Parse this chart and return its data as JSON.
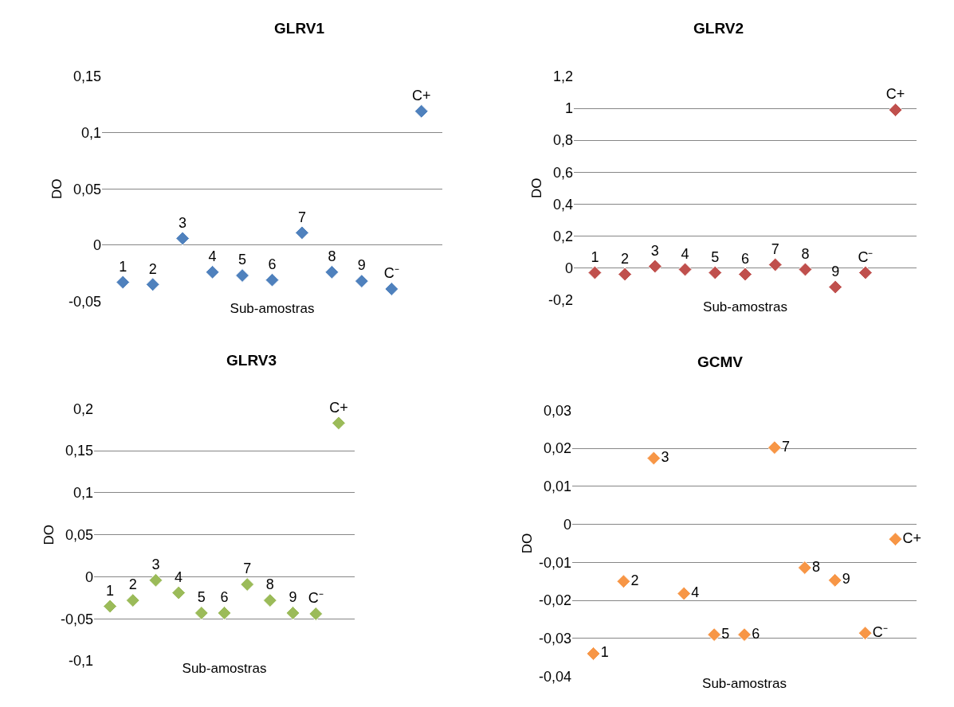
{
  "chart_data": [
    {
      "type": "scatter",
      "title": "GLRV1",
      "xlabel": "Sub-amostras",
      "ylabel": "DO",
      "categories": [
        null,
        null,
        null,
        null,
        null,
        null,
        null,
        null,
        null,
        null,
        null
      ],
      "marker": "diamond",
      "grid": "y",
      "ylim": [
        -0.05,
        0.15
      ],
      "yticks": [
        {
          "value": -0.05,
          "label": "-0,05"
        },
        {
          "value": 0,
          "label": "0"
        },
        {
          "value": 0.05,
          "label": "0,05"
        },
        {
          "value": 0.1,
          "label": "0,1"
        },
        {
          "value": 0.15,
          "label": "0,15"
        }
      ],
      "tick_labels": "y",
      "series": [
        {
          "name": "1",
          "color": "#4f81bd",
          "values": [
            -0.033,
            null,
            null,
            null,
            null,
            null,
            null,
            null,
            null,
            null,
            null
          ]
        },
        {
          "name": "2",
          "color": "#4f81bd",
          "values": [
            null,
            -0.035,
            null,
            null,
            null,
            null,
            null,
            null,
            null,
            null,
            null
          ]
        },
        {
          "name": "3",
          "color": "#4f81bd",
          "values": [
            null,
            null,
            0.006,
            null,
            null,
            null,
            null,
            null,
            null,
            null,
            null
          ]
        },
        {
          "name": "4",
          "color": "#4f81bd",
          "values": [
            null,
            null,
            null,
            -0.024,
            null,
            null,
            null,
            null,
            null,
            null,
            null
          ]
        },
        {
          "name": "5",
          "color": "#4f81bd",
          "values": [
            null,
            null,
            null,
            null,
            -0.027,
            null,
            null,
            null,
            null,
            null,
            null
          ]
        },
        {
          "name": "6",
          "color": "#4f81bd",
          "values": [
            null,
            null,
            null,
            null,
            null,
            -0.031,
            null,
            null,
            null,
            null,
            null
          ]
        },
        {
          "name": "7",
          "color": "#4f81bd",
          "values": [
            null,
            null,
            null,
            null,
            null,
            null,
            0.011,
            null,
            null,
            null,
            null
          ]
        },
        {
          "name": "8",
          "color": "#4f81bd",
          "values": [
            null,
            null,
            null,
            null,
            null,
            null,
            null,
            -0.024,
            null,
            null,
            null
          ]
        },
        {
          "name": "9",
          "color": "#4f81bd",
          "values": [
            null,
            null,
            null,
            null,
            null,
            null,
            null,
            null,
            -0.032,
            null,
            null
          ]
        },
        {
          "name": "C⁻",
          "color": "#4f81bd",
          "values": [
            null,
            null,
            null,
            null,
            null,
            null,
            null,
            null,
            null,
            -0.039,
            null
          ]
        },
        {
          "name": "C+",
          "color": "#4f81bd",
          "values": [
            null,
            null,
            null,
            null,
            null,
            null,
            null,
            null,
            null,
            null,
            0.119
          ]
        }
      ]
    },
    {
      "type": "scatter",
      "title": "GLRV2",
      "xlabel": "Sub-amostras",
      "ylabel": "DO",
      "categories": [
        null,
        null,
        null,
        null,
        null,
        null,
        null,
        null,
        null,
        null,
        null
      ],
      "marker": "diamond",
      "grid": "y",
      "ylim": [
        -0.2,
        1.2
      ],
      "yticks": [
        {
          "value": -0.2,
          "label": "-0,2"
        },
        {
          "value": 0,
          "label": "0"
        },
        {
          "value": 0.2,
          "label": "0,2"
        },
        {
          "value": 0.4,
          "label": "0,4"
        },
        {
          "value": 0.6,
          "label": "0,6"
        },
        {
          "value": 0.8,
          "label": "0,8"
        },
        {
          "value": 1,
          "label": "1"
        },
        {
          "value": 1.2,
          "label": "1,2"
        }
      ],
      "tick_labels": "y",
      "series": [
        {
          "name": "1",
          "color": "#c0504d",
          "values": [
            -0.03,
            null,
            null,
            null,
            null,
            null,
            null,
            null,
            null,
            null,
            null
          ]
        },
        {
          "name": "2",
          "color": "#c0504d",
          "values": [
            null,
            -0.04,
            null,
            null,
            null,
            null,
            null,
            null,
            null,
            null,
            null
          ]
        },
        {
          "name": "3",
          "color": "#c0504d",
          "values": [
            null,
            null,
            0.01,
            null,
            null,
            null,
            null,
            null,
            null,
            null,
            null
          ]
        },
        {
          "name": "4",
          "color": "#c0504d",
          "values": [
            null,
            null,
            null,
            -0.01,
            null,
            null,
            null,
            null,
            null,
            null,
            null
          ]
        },
        {
          "name": "5",
          "color": "#c0504d",
          "values": [
            null,
            null,
            null,
            null,
            -0.03,
            null,
            null,
            null,
            null,
            null,
            null
          ]
        },
        {
          "name": "6",
          "color": "#c0504d",
          "values": [
            null,
            null,
            null,
            null,
            null,
            -0.04,
            null,
            null,
            null,
            null,
            null
          ]
        },
        {
          "name": "7",
          "color": "#c0504d",
          "values": [
            null,
            null,
            null,
            null,
            null,
            null,
            0.02,
            null,
            null,
            null,
            null
          ]
        },
        {
          "name": "8",
          "color": "#c0504d",
          "values": [
            null,
            null,
            null,
            null,
            null,
            null,
            null,
            -0.01,
            null,
            null,
            null
          ]
        },
        {
          "name": "9",
          "color": "#c0504d",
          "values": [
            null,
            null,
            null,
            null,
            null,
            null,
            null,
            null,
            -0.12,
            null,
            null
          ]
        },
        {
          "name": "C⁻",
          "color": "#c0504d",
          "values": [
            null,
            null,
            null,
            null,
            null,
            null,
            null,
            null,
            null,
            -0.03,
            null
          ]
        },
        {
          "name": "C+",
          "color": "#c0504d",
          "values": [
            null,
            null,
            null,
            null,
            null,
            null,
            null,
            null,
            null,
            null,
            0.99
          ]
        }
      ]
    },
    {
      "type": "scatter",
      "title": "GLRV3",
      "xlabel": "Sub-amostras",
      "ylabel": "DO",
      "categories": [
        null,
        null,
        null,
        null,
        null,
        null,
        null,
        null,
        null,
        null,
        null
      ],
      "marker": "diamond",
      "grid": "y",
      "ylim": [
        -0.1,
        0.2
      ],
      "yticks": [
        {
          "value": -0.1,
          "label": "-0,1"
        },
        {
          "value": -0.05,
          "label": "-0,05"
        },
        {
          "value": 0,
          "label": "0"
        },
        {
          "value": 0.05,
          "label": "0,05"
        },
        {
          "value": 0.1,
          "label": "0,1"
        },
        {
          "value": 0.15,
          "label": "0,15"
        },
        {
          "value": 0.2,
          "label": "0,2"
        }
      ],
      "tick_labels": "y",
      "series": [
        {
          "name": "1",
          "color": "#9bbb59",
          "values": [
            -0.035,
            null,
            null,
            null,
            null,
            null,
            null,
            null,
            null,
            null,
            null
          ]
        },
        {
          "name": "2",
          "color": "#9bbb59",
          "values": [
            null,
            -0.028,
            null,
            null,
            null,
            null,
            null,
            null,
            null,
            null,
            null
          ]
        },
        {
          "name": "3",
          "color": "#9bbb59",
          "values": [
            null,
            null,
            -0.004,
            null,
            null,
            null,
            null,
            null,
            null,
            null,
            null
          ]
        },
        {
          "name": "4",
          "color": "#9bbb59",
          "values": [
            null,
            null,
            null,
            -0.019,
            null,
            null,
            null,
            null,
            null,
            null,
            null
          ]
        },
        {
          "name": "5",
          "color": "#9bbb59",
          "values": [
            null,
            null,
            null,
            null,
            -0.043,
            null,
            null,
            null,
            null,
            null,
            null
          ]
        },
        {
          "name": "6",
          "color": "#9bbb59",
          "values": [
            null,
            null,
            null,
            null,
            null,
            -0.043,
            null,
            null,
            null,
            null,
            null
          ]
        },
        {
          "name": "7",
          "color": "#9bbb59",
          "values": [
            null,
            null,
            null,
            null,
            null,
            null,
            -0.009,
            null,
            null,
            null,
            null
          ]
        },
        {
          "name": "8",
          "color": "#9bbb59",
          "values": [
            null,
            null,
            null,
            null,
            null,
            null,
            null,
            -0.028,
            null,
            null,
            null
          ]
        },
        {
          "name": "9",
          "color": "#9bbb59",
          "values": [
            null,
            null,
            null,
            null,
            null,
            null,
            null,
            null,
            -0.043,
            null,
            null
          ]
        },
        {
          "name": "C⁻",
          "color": "#9bbb59",
          "values": [
            null,
            null,
            null,
            null,
            null,
            null,
            null,
            null,
            null,
            -0.044,
            null
          ]
        },
        {
          "name": "C+",
          "color": "#9bbb59",
          "values": [
            null,
            null,
            null,
            null,
            null,
            null,
            null,
            null,
            null,
            null,
            0.183
          ]
        }
      ]
    },
    {
      "type": "scatter",
      "title": "GCMV",
      "xlabel": "Sub-amostras",
      "ylabel": "DO",
      "categories": [
        null,
        null,
        null,
        null,
        null,
        null,
        null,
        null,
        null,
        null,
        null
      ],
      "marker": "diamond",
      "grid": "y",
      "ylim": [
        -0.04,
        0.03
      ],
      "yticks": [
        {
          "value": -0.04,
          "label": "-0,04"
        },
        {
          "value": -0.03,
          "label": "-0,03"
        },
        {
          "value": -0.02,
          "label": "-0,02"
        },
        {
          "value": -0.01,
          "label": "-0,01"
        },
        {
          "value": 0,
          "label": "0"
        },
        {
          "value": 0.01,
          "label": "0,01"
        },
        {
          "value": 0.02,
          "label": "0,02"
        },
        {
          "value": 0.03,
          "label": "0,03"
        }
      ],
      "tick_labels": "y",
      "series": [
        {
          "name": "1",
          "color": "#f79646",
          "values": [
            -0.034,
            null,
            null,
            null,
            null,
            null,
            null,
            null,
            null,
            null,
            null
          ]
        },
        {
          "name": "2",
          "color": "#f79646",
          "values": [
            null,
            -0.015,
            null,
            null,
            null,
            null,
            null,
            null,
            null,
            null,
            null
          ]
        },
        {
          "name": "3",
          "color": "#f79646",
          "values": [
            null,
            null,
            0.0174,
            null,
            null,
            null,
            null,
            null,
            null,
            null,
            null
          ]
        },
        {
          "name": "4",
          "color": "#f79646",
          "values": [
            null,
            null,
            null,
            -0.0182,
            null,
            null,
            null,
            null,
            null,
            null,
            null
          ]
        },
        {
          "name": "5",
          "color": "#f79646",
          "values": [
            null,
            null,
            null,
            null,
            -0.029,
            null,
            null,
            null,
            null,
            null,
            null
          ]
        },
        {
          "name": "6",
          "color": "#f79646",
          "values": [
            null,
            null,
            null,
            null,
            null,
            -0.029,
            null,
            null,
            null,
            null,
            null
          ]
        },
        {
          "name": "7",
          "color": "#f79646",
          "values": [
            null,
            null,
            null,
            null,
            null,
            null,
            0.0202,
            null,
            null,
            null,
            null
          ]
        },
        {
          "name": "8",
          "color": "#f79646",
          "values": [
            null,
            null,
            null,
            null,
            null,
            null,
            null,
            -0.0114,
            null,
            null,
            null
          ]
        },
        {
          "name": "9",
          "color": "#f79646",
          "values": [
            null,
            null,
            null,
            null,
            null,
            null,
            null,
            null,
            -0.0147,
            null,
            null
          ]
        },
        {
          "name": "C⁻",
          "color": "#f79646",
          "values": [
            null,
            null,
            null,
            null,
            null,
            null,
            null,
            null,
            null,
            -0.0286,
            null
          ]
        },
        {
          "name": "C+",
          "color": "#f79646",
          "values": [
            null,
            null,
            null,
            null,
            null,
            null,
            null,
            null,
            null,
            null,
            -0.0039
          ]
        }
      ]
    }
  ]
}
